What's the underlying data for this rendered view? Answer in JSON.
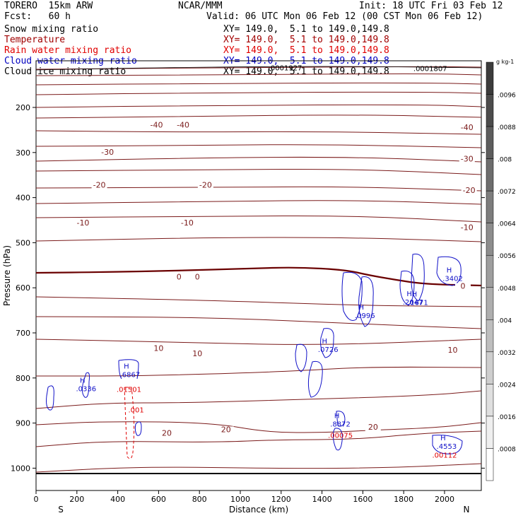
{
  "header": {
    "model": "TORERO  15km ARW",
    "org": "NCAR/MMM",
    "init": "Init: 18 UTC Fri 03 Feb 12",
    "fcst": "Fcst:   60 h",
    "valid": "Valid: 06 UTC Mon 06 Feb 12 (00 CST Mon 06 Feb 12)"
  },
  "fields": [
    {
      "name": "Snow mixing ratio",
      "xy": "XY= 149.0,  5.1 to 149.0,149.8",
      "color": "#000000"
    },
    {
      "name": "Temperature",
      "xy": "XY= 149.0,  5.1 to 149.0,149.8",
      "color": "#a00000"
    },
    {
      "name": "Rain water mixing ratio",
      "xy": "XY= 149.0,  5.1 to 149.0,149.8",
      "color": "#e00000"
    },
    {
      "name": "Cloud water mixing ratio",
      "xy": "XY= 149.0,  5.1 to 149.0,149.8",
      "color": "#0000c0"
    },
    {
      "name": "Cloud ice mixing ratio",
      "xy": "XY= 149.0,  5.1 to 149.0,149.8",
      "color": "#000000"
    }
  ],
  "colors": {
    "temperature": "#7a1a1a",
    "zero_isotherm": "#6a0000",
    "rain": "#e00000",
    "cloud_water": "#1010c8",
    "axis": "#000000"
  },
  "chart_data": {
    "type": "contour",
    "xlabel": "Distance (km)",
    "ylabel": "Pressure (hPa)",
    "xlim": [
      0,
      2180
    ],
    "ylim": [
      1050,
      100
    ],
    "xticks": [
      0,
      200,
      400,
      600,
      800,
      1000,
      1200,
      1400,
      1600,
      1800,
      2000
    ],
    "yticks": [
      200,
      300,
      400,
      500,
      600,
      700,
      800,
      900,
      1000
    ],
    "x_end_labels": {
      "left": "S",
      "right": "N"
    },
    "temperature_labels": [
      {
        "x": 590,
        "p": 245,
        "text": "-40"
      },
      {
        "x": 720,
        "p": 245,
        "text": "-40"
      },
      {
        "x": 2110,
        "p": 250,
        "text": "-40"
      },
      {
        "x": 350,
        "p": 305,
        "text": "-30"
      },
      {
        "x": 2110,
        "p": 320,
        "text": "-30"
      },
      {
        "x": 310,
        "p": 378,
        "text": "-20"
      },
      {
        "x": 830,
        "p": 378,
        "text": "-20"
      },
      {
        "x": 2120,
        "p": 390,
        "text": "-20"
      },
      {
        "x": 230,
        "p": 462,
        "text": "-10"
      },
      {
        "x": 740,
        "p": 462,
        "text": "-10"
      },
      {
        "x": 2110,
        "p": 472,
        "text": "-10"
      },
      {
        "x": 700,
        "p": 582,
        "text": "0"
      },
      {
        "x": 790,
        "p": 582,
        "text": "0"
      },
      {
        "x": 2090,
        "p": 602,
        "text": "0"
      },
      {
        "x": 600,
        "p": 740,
        "text": "10"
      },
      {
        "x": 790,
        "p": 752,
        "text": "10"
      },
      {
        "x": 2040,
        "p": 744,
        "text": "10"
      },
      {
        "x": 1650,
        "p": 915,
        "text": "20"
      },
      {
        "x": 930,
        "p": 920,
        "text": "20"
      },
      {
        "x": 640,
        "p": 928,
        "text": "20"
      }
    ],
    "snow_labels": [
      {
        "x": 1220,
        "p": 118,
        "text": ".0001927"
      },
      {
        "x": 1930,
        "p": 119,
        "text": ".0001807"
      }
    ],
    "rain_labels": [
      {
        "x": 455,
        "p": 831,
        "text": ".01501"
      },
      {
        "x": 490,
        "p": 876,
        "text": ".001"
      },
      {
        "x": 1490,
        "p": 933,
        "text": ".00075"
      },
      {
        "x": 2000,
        "p": 977,
        "text": ".00112"
      }
    ],
    "cloud_labels": [
      {
        "x": 245,
        "p": 829,
        "text": ".0336"
      },
      {
        "x": 460,
        "p": 798,
        "text": ".6867"
      },
      {
        "x": 1490,
        "p": 908,
        "text": ".8872"
      },
      {
        "x": 1430,
        "p": 742,
        "text": ".0726"
      },
      {
        "x": 1610,
        "p": 667,
        "text": ".0996"
      },
      {
        "x": 1845,
        "p": 637,
        "text": ".2047"
      },
      {
        "x": 2040,
        "p": 585,
        "text": ".3402"
      },
      {
        "x": 2010,
        "p": 957,
        "text": ".4553"
      },
      {
        "x": 1870,
        "p": 638,
        "text": ".1671"
      }
    ],
    "colorbar": {
      "unit": "g kg-1",
      "labels": [
        ".0096",
        ".0088",
        ".008",
        ".0072",
        ".0064",
        ".0056",
        ".0048",
        ".004",
        ".0032",
        ".0024",
        ".0016",
        ".0008"
      ]
    }
  }
}
